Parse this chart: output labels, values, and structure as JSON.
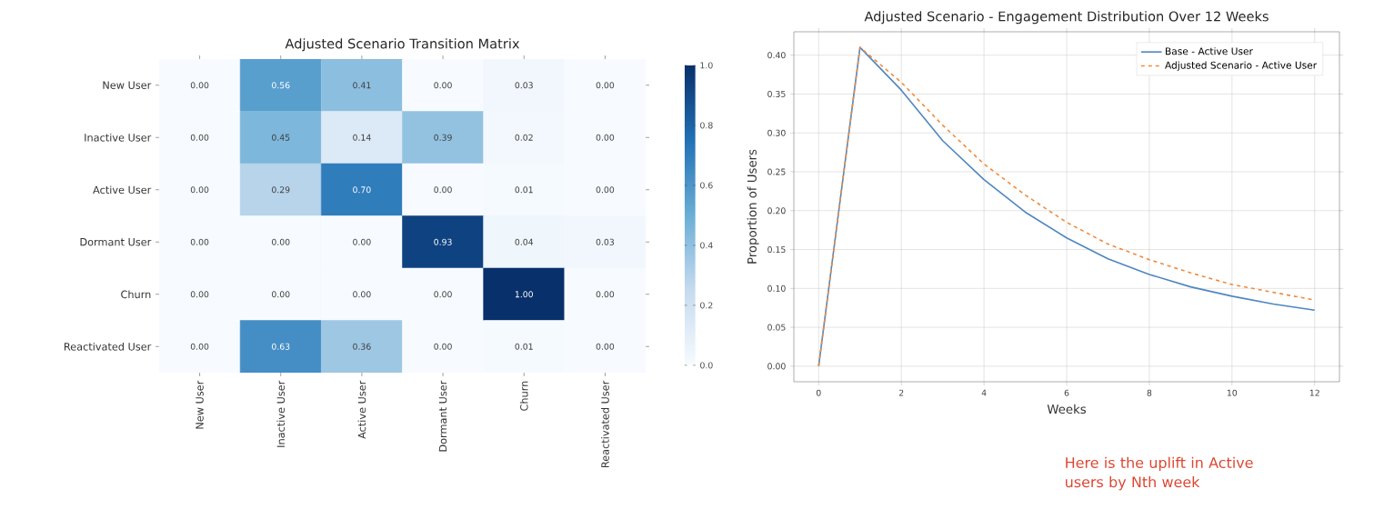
{
  "chart_data": [
    {
      "type": "heatmap",
      "title": "Adjusted Scenario Transition Matrix",
      "categories": [
        "New User",
        "Inactive User",
        "Active User",
        "Dormant User",
        "Churn",
        "Reactivated User"
      ],
      "y_categories": [
        "New User",
        "Inactive User",
        "Active User",
        "Dormant User",
        "Churn",
        "Reactivated User"
      ],
      "cells": [
        [
          0.0,
          0.56,
          0.41,
          0.0,
          0.03,
          0.0
        ],
        [
          0.0,
          0.45,
          0.14,
          0.39,
          0.02,
          0.0
        ],
        [
          0.0,
          0.29,
          0.7,
          0.0,
          0.01,
          0.0
        ],
        [
          0.0,
          0.0,
          0.0,
          0.93,
          0.04,
          0.03
        ],
        [
          0.0,
          0.0,
          0.0,
          0.0,
          1.0,
          0.0
        ],
        [
          0.0,
          0.63,
          0.36,
          0.0,
          0.01,
          0.0
        ]
      ],
      "cell_labels": [
        [
          "0.00",
          "0.56",
          "0.41",
          "0.00",
          "0.03",
          "0.00"
        ],
        [
          "0.00",
          "0.45",
          "0.14",
          "0.39",
          "0.02",
          "0.00"
        ],
        [
          "0.00",
          "0.29",
          "0.70",
          "0.00",
          "0.01",
          "0.00"
        ],
        [
          "0.00",
          "0.00",
          "0.00",
          "0.93",
          "0.04",
          "0.03"
        ],
        [
          "0.00",
          "0.00",
          "0.00",
          "0.00",
          "1.00",
          "0.00"
        ],
        [
          "0.00",
          "0.63",
          "0.36",
          "0.00",
          "0.01",
          "0.00"
        ]
      ],
      "clim": [
        0,
        1
      ],
      "cticks": [
        {
          "value": 0,
          "label": "0.0"
        },
        {
          "value": 0.2,
          "label": "0.2"
        },
        {
          "value": 0.4,
          "label": "0.4"
        },
        {
          "value": 0.6,
          "label": "0.6"
        },
        {
          "value": 0.8,
          "label": "0.8"
        },
        {
          "value": 1,
          "label": "1.0"
        }
      ]
    },
    {
      "type": "line",
      "title": "Adjusted Scenario - Engagement Distribution Over 12 Weeks",
      "xlabel": "Weeks",
      "ylabel": "Proportion of Users",
      "x": [
        0,
        1,
        2,
        3,
        4,
        5,
        6,
        7,
        8,
        9,
        10,
        11,
        12
      ],
      "series": [
        {
          "name": "Base - Active User",
          "color": "#4f86c0",
          "line_style": "solid",
          "values": [
            0.0,
            0.41,
            0.355,
            0.29,
            0.24,
            0.198,
            0.165,
            0.138,
            0.118,
            0.102,
            0.09,
            0.08,
            0.072
          ]
        },
        {
          "name": "Adjusted Scenario - Active User",
          "color": "#f08a3c",
          "line_style": "dashed",
          "values": [
            0.0,
            0.41,
            0.365,
            0.31,
            0.26,
            0.22,
            0.185,
            0.157,
            0.137,
            0.12,
            0.105,
            0.095,
            0.085
          ]
        }
      ],
      "xlim": [
        -0.6,
        12.6
      ],
      "ylim": [
        -0.02,
        0.43
      ],
      "xticks": [
        0,
        2,
        4,
        6,
        8,
        10,
        12
      ],
      "yticks": [
        {
          "value": 0,
          "label": "0.00"
        },
        {
          "value": 0.05,
          "label": "0.05"
        },
        {
          "value": 0.1,
          "label": "0.10"
        },
        {
          "value": 0.15,
          "label": "0.15"
        },
        {
          "value": 0.2,
          "label": "0.20"
        },
        {
          "value": 0.25,
          "label": "0.25"
        },
        {
          "value": 0.3,
          "label": "0.30"
        },
        {
          "value": 0.35,
          "label": "0.35"
        },
        {
          "value": 0.4,
          "label": "0.40"
        }
      ],
      "grid": true,
      "legend": "top right",
      "annotations": [
        "Here is the uplift in Active users by Nth week"
      ]
    }
  ]
}
